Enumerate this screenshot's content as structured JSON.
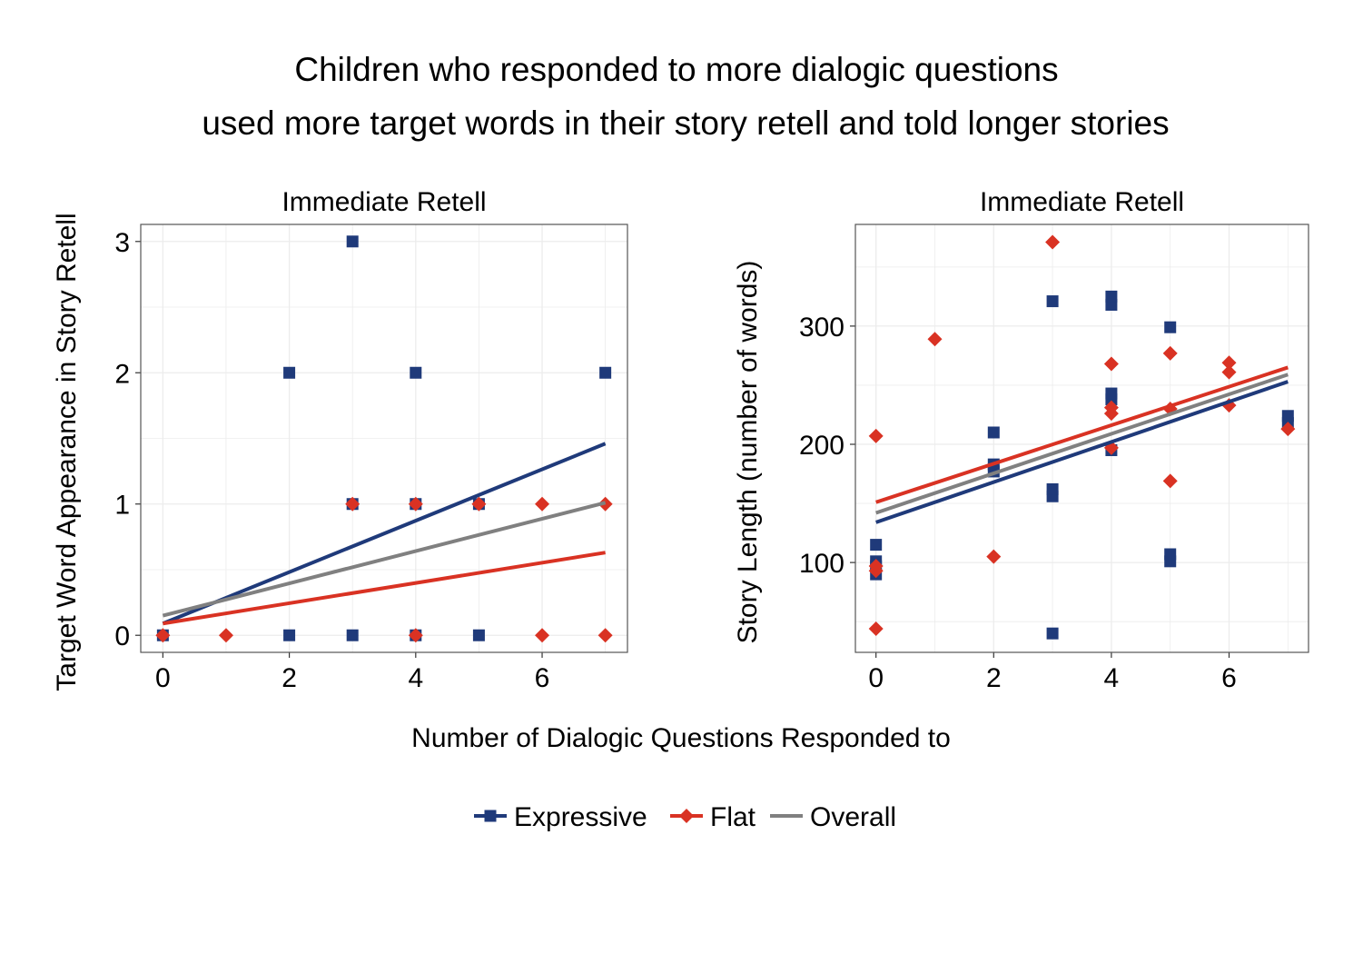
{
  "figure": {
    "title_line1": "Children who responded to more dialogic questions",
    "title_line2": "used more target words in their story retell and told longer stories",
    "shared_xlabel": "Number of Dialogic Questions Responded to"
  },
  "legend": {
    "position": "bottom",
    "items": [
      {
        "label": "Expressive",
        "color": "#1f3a7a",
        "shape": "square"
      },
      {
        "label": "Flat",
        "color": "#d93223",
        "shape": "diamond"
      },
      {
        "label": "Overall",
        "color": "#808080",
        "shape": "line"
      }
    ]
  },
  "chart_data": [
    {
      "type": "scatter",
      "title": "Immediate Retell",
      "xlabel": "Number of Dialogic Questions Responded to",
      "ylabel": "Target Word Appearance in Story Retell",
      "xlim": [
        -0.35,
        7.35
      ],
      "ylim": [
        -0.13,
        3.13
      ],
      "xticks": [
        0,
        2,
        4,
        6
      ],
      "yticks": [
        0,
        1,
        2,
        3
      ],
      "grid": true,
      "series": [
        {
          "name": "Expressive",
          "color": "#1f3a7a",
          "marker": "square",
          "points": [
            [
              0,
              0
            ],
            [
              2,
              0
            ],
            [
              2,
              2
            ],
            [
              3,
              0
            ],
            [
              3,
              1
            ],
            [
              3,
              3
            ],
            [
              4,
              0
            ],
            [
              4,
              1
            ],
            [
              4,
              2
            ],
            [
              5,
              0
            ],
            [
              5,
              1
            ],
            [
              7,
              2
            ]
          ]
        },
        {
          "name": "Flat",
          "color": "#d93223",
          "marker": "diamond",
          "points": [
            [
              0,
              0
            ],
            [
              1,
              0
            ],
            [
              3,
              1
            ],
            [
              4,
              0
            ],
            [
              4,
              1
            ],
            [
              5,
              1
            ],
            [
              6,
              0
            ],
            [
              6,
              1
            ],
            [
              7,
              0
            ],
            [
              7,
              1
            ]
          ]
        }
      ],
      "fits": [
        {
          "name": "Expressive",
          "color": "#1f3a7a",
          "from": [
            0,
            0.09
          ],
          "to": [
            7,
            1.46
          ]
        },
        {
          "name": "Flat",
          "color": "#d93223",
          "from": [
            0,
            0.09
          ],
          "to": [
            7,
            0.63
          ]
        },
        {
          "name": "Overall",
          "color": "#808080",
          "from": [
            0,
            0.15
          ],
          "to": [
            7,
            1.01
          ]
        }
      ]
    },
    {
      "type": "scatter",
      "title": "Immediate Retell",
      "xlabel": "Number of Dialogic Questions Responded to",
      "ylabel": "Story Length (number of words)",
      "xlim": [
        -0.35,
        7.35
      ],
      "ylim": [
        24,
        386
      ],
      "xticks": [
        0,
        2,
        4,
        6
      ],
      "yticks": [
        100,
        200,
        300
      ],
      "grid": true,
      "series": [
        {
          "name": "Expressive",
          "color": "#1f3a7a",
          "marker": "square",
          "points": [
            [
              0,
              90
            ],
            [
              0,
              97
            ],
            [
              0,
              101
            ],
            [
              0,
              115
            ],
            [
              2,
              177
            ],
            [
              2,
              183
            ],
            [
              2,
              210
            ],
            [
              3,
              40
            ],
            [
              3,
              156
            ],
            [
              3,
              162
            ],
            [
              3,
              321
            ],
            [
              4,
              195
            ],
            [
              4,
              238
            ],
            [
              4,
              243
            ],
            [
              4,
              318
            ],
            [
              4,
              325
            ],
            [
              5,
              101
            ],
            [
              5,
              107
            ],
            [
              5,
              299
            ],
            [
              7,
              218
            ],
            [
              7,
              224
            ]
          ]
        },
        {
          "name": "Flat",
          "color": "#d93223",
          "marker": "diamond",
          "points": [
            [
              0,
              44
            ],
            [
              0,
              93
            ],
            [
              0,
              97
            ],
            [
              0,
              207
            ],
            [
              1,
              289
            ],
            [
              2,
              105
            ],
            [
              3,
              371
            ],
            [
              4,
              197
            ],
            [
              4,
              226
            ],
            [
              4,
              231
            ],
            [
              4,
              268
            ],
            [
              5,
              169
            ],
            [
              5,
              230
            ],
            [
              5,
              277
            ],
            [
              6,
              233
            ],
            [
              6,
              261
            ],
            [
              6,
              269
            ],
            [
              7,
              213
            ]
          ]
        }
      ],
      "fits": [
        {
          "name": "Expressive",
          "color": "#1f3a7a",
          "from": [
            0,
            134
          ],
          "to": [
            7,
            253
          ]
        },
        {
          "name": "Flat",
          "color": "#d93223",
          "from": [
            0,
            151
          ],
          "to": [
            7,
            265
          ]
        },
        {
          "name": "Overall",
          "color": "#808080",
          "from": [
            0,
            142
          ],
          "to": [
            7,
            259
          ]
        }
      ]
    }
  ]
}
